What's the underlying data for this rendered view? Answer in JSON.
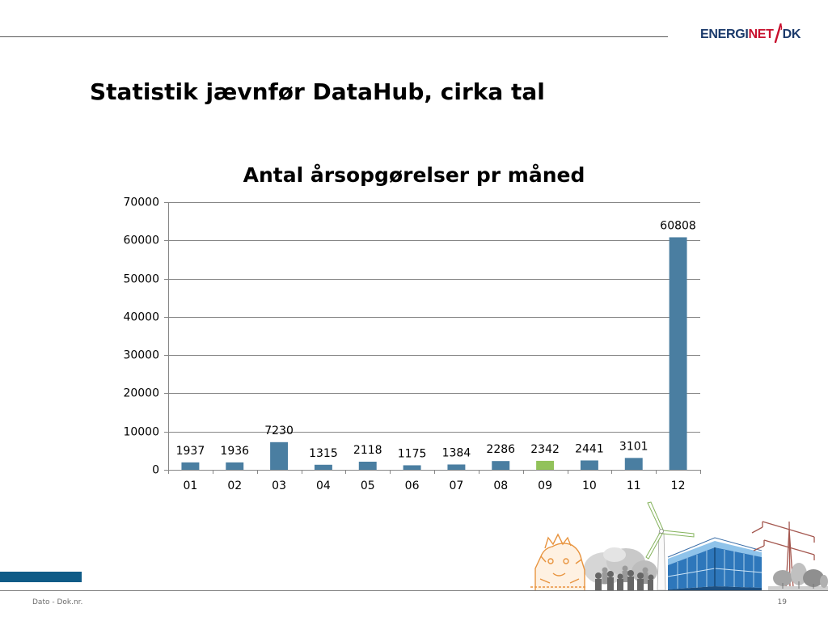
{
  "header": {
    "logo": {
      "part1": "ENERGI",
      "part2": "NET",
      "part3": "DK",
      "icon": "logo-slash-icon"
    },
    "title": "Statistik jævnfør DataHub, cirka tal"
  },
  "chart_data": {
    "type": "bar",
    "title": "Antal årsopgørelser pr måned",
    "categories": [
      "01",
      "02",
      "03",
      "04",
      "05",
      "06",
      "07",
      "08",
      "09",
      "10",
      "11",
      "12"
    ],
    "values": [
      1937,
      1936,
      7230,
      1315,
      2118,
      1175,
      1384,
      2286,
      2342,
      2441,
      3101,
      60808
    ],
    "bar_colors": [
      "#4a7ea1",
      "#4a7ea1",
      "#4a7ea1",
      "#4a7ea1",
      "#4a7ea1",
      "#4a7ea1",
      "#4a7ea1",
      "#4a7ea1",
      "#92c25a",
      "#4a7ea1",
      "#4a7ea1",
      "#4a7ea1"
    ],
    "yticks": [
      0,
      10000,
      20000,
      30000,
      40000,
      50000,
      60000,
      70000
    ],
    "ylim": [
      0,
      70000
    ],
    "data_labels": true,
    "grid": true,
    "legend": false
  },
  "footer": {
    "doc_ref": "Dato - Dok.nr.",
    "page_number": "19"
  },
  "colors": {
    "rule": "#5a5a5a",
    "band": "#0f5b87",
    "footer_rule": "#7f7f7f",
    "footer_text": "#6b6b6b",
    "gridline": "#868686",
    "logo_dark": "#1b3a6b",
    "logo_red": "#c8102e"
  },
  "illustration": {
    "icons": [
      "sketch-figure-icon",
      "crowd-photo-icon",
      "wind-turbine-icon",
      "office-building-icon",
      "power-pylon-icon",
      "trees-icon"
    ]
  }
}
